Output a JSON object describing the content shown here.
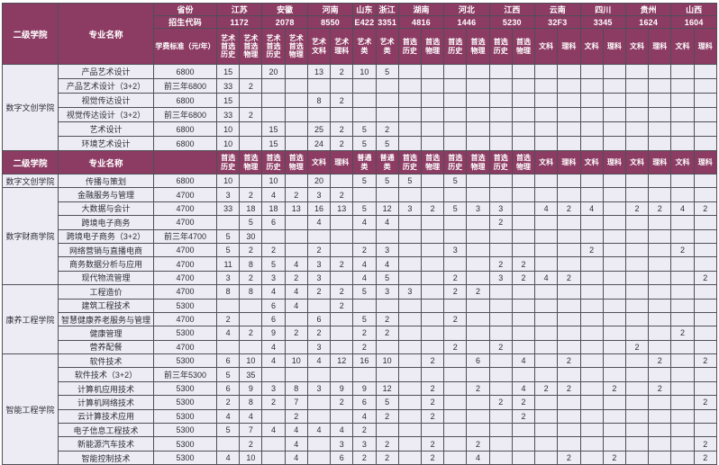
{
  "colors": {
    "header_bg": "#8c3b63",
    "header_text": "#ffffff",
    "cell_bg": "#edecf4",
    "border": "#514e57",
    "cell_text": "#2d2d35"
  },
  "table": {
    "college_label": "二级学院",
    "major_label": "专业名称",
    "province_label": "省份",
    "code_label": "招生代码",
    "fee_label": "学费标准（元/年）",
    "provinces": [
      {
        "name": "江苏",
        "code": "1172",
        "cols": 2
      },
      {
        "name": "安徽",
        "code": "2078",
        "cols": 2
      },
      {
        "name": "河南",
        "code": "8550",
        "cols": 2
      },
      {
        "name": "山东",
        "code": "E422",
        "cols": 1
      },
      {
        "name": "浙江",
        "code": "3351",
        "cols": 1
      },
      {
        "name": "湖南",
        "code": "4816",
        "cols": 2
      },
      {
        "name": "河北",
        "code": "1446",
        "cols": 2
      },
      {
        "name": "江西",
        "code": "5230",
        "cols": 2
      },
      {
        "name": "云南",
        "code": "32F3",
        "cols": 2
      },
      {
        "name": "四川",
        "code": "3345",
        "cols": 2
      },
      {
        "name": "贵州",
        "code": "1624",
        "cols": 2
      },
      {
        "name": "山西",
        "code": "1604",
        "cols": 2
      }
    ],
    "art_subject_cols": [
      "艺术\n首选\n历史",
      "艺术\n首选\n物理",
      "艺术\n首选\n历史",
      "艺术\n首选\n物理",
      "艺术\n文科",
      "艺术\n理科",
      "艺术\n类",
      "艺术\n类",
      "首选\n历史",
      "首选\n物理",
      "首选\n历史",
      "首选\n物理",
      "首选\n历史",
      "首选\n物理",
      "文科",
      "理科",
      "文科",
      "理科",
      "文科",
      "理科",
      "文科",
      "理科"
    ],
    "general_subject_cols": [
      "首选\n历史",
      "首选\n物理",
      "首选\n历史",
      "首选\n物理",
      "文科",
      "理科",
      "普通\n类",
      "普通\n类",
      "首选\n历史",
      "首选\n物理",
      "首选\n历史",
      "首选\n物理",
      "首选\n历史",
      "首选\n物理",
      "文科",
      "理科",
      "文科",
      "理科",
      "文科",
      "理科",
      "文科",
      "理科"
    ],
    "sections_top": [
      {
        "college": "数字文创学院",
        "rows": [
          {
            "major": "产品艺术设计",
            "fee": "6800",
            "values": [
              "15",
              "",
              "20",
              "",
              "13",
              "2",
              "10",
              "5",
              "",
              "",
              "",
              "",
              "",
              "",
              "",
              "",
              "",
              "",
              "",
              "",
              "",
              ""
            ]
          },
          {
            "major": "产品艺术设计（3+2）",
            "fee": "前三年6800",
            "values": [
              "33",
              "2",
              "",
              "",
              "",
              "",
              "",
              "",
              "",
              "",
              "",
              "",
              "",
              "",
              "",
              "",
              "",
              "",
              "",
              "",
              "",
              ""
            ]
          },
          {
            "major": "视觉传达设计",
            "fee": "6800",
            "values": [
              "15",
              "",
              "",
              "",
              "8",
              "2",
              "",
              "",
              "",
              "",
              "",
              "",
              "",
              "",
              "",
              "",
              "",
              "",
              "",
              "",
              "",
              ""
            ]
          },
          {
            "major": "视觉传达设计（3+2）",
            "fee": "前三年6800",
            "values": [
              "33",
              "2",
              "",
              "",
              "",
              "",
              "",
              "",
              "",
              "",
              "",
              "",
              "",
              "",
              "",
              "",
              "",
              "",
              "",
              "",
              "",
              ""
            ]
          },
          {
            "major": "艺术设计",
            "fee": "6800",
            "values": [
              "10",
              "",
              "15",
              "",
              "25",
              "2",
              "5",
              "2",
              "",
              "",
              "",
              "",
              "",
              "",
              "",
              "",
              "",
              "",
              "",
              "",
              "",
              ""
            ]
          },
          {
            "major": "环境艺术设计",
            "fee": "6800",
            "values": [
              "10",
              "",
              "15",
              "",
              "24",
              "2",
              "5",
              "5",
              "",
              "",
              "",
              "",
              "",
              "",
              "",
              "",
              "",
              "",
              "",
              "",
              "",
              ""
            ]
          }
        ]
      }
    ],
    "sections_bottom": [
      {
        "college": "数字文创学院",
        "rows": [
          {
            "major": "传播与策划",
            "fee": "6800",
            "values": [
              "10",
              "",
              "10",
              "",
              "20",
              "",
              "5",
              "5",
              "5",
              "",
              "5",
              "",
              "",
              "",
              "",
              "",
              "",
              "",
              "",
              "",
              "",
              ""
            ]
          }
        ]
      },
      {
        "college": "数字财商学院",
        "rows": [
          {
            "major": "金融服务与管理",
            "fee": "4700",
            "values": [
              "3",
              "2",
              "4",
              "2",
              "3",
              "2",
              "",
              "",
              "",
              "",
              "",
              "",
              "",
              "",
              "",
              "",
              "",
              "",
              "",
              "",
              "",
              ""
            ]
          },
          {
            "major": "大数据与会计",
            "fee": "4700",
            "values": [
              "33",
              "18",
              "18",
              "13",
              "16",
              "13",
              "5",
              "12",
              "3",
              "2",
              "5",
              "3",
              "3",
              "",
              "4",
              "2",
              "4",
              "",
              "2",
              "2",
              "4",
              "2"
            ]
          },
          {
            "major": "跨境电子商务",
            "fee": "4700",
            "values": [
              "",
              "5",
              "6",
              "",
              "4",
              "",
              "4",
              "4",
              "",
              "",
              "",
              "",
              "2",
              "",
              "",
              "",
              "",
              "",
              "",
              "",
              "",
              ""
            ]
          },
          {
            "major": "跨境电子商务（3+2）",
            "fee": "前三年4700",
            "values": [
              "5",
              "30",
              "",
              "",
              "",
              "",
              "",
              "",
              "",
              "",
              "",
              "",
              "",
              "",
              "",
              "",
              "",
              "",
              "",
              "",
              "",
              ""
            ]
          },
          {
            "major": "网络营销与直播电商",
            "fee": "4700",
            "values": [
              "5",
              "2",
              "2",
              "",
              "2",
              "",
              "2",
              "3",
              "",
              "",
              "3",
              "",
              "",
              "",
              "",
              "",
              "2",
              "",
              "",
              "",
              "2",
              ""
            ]
          },
          {
            "major": "商务数据分析与应用",
            "fee": "4700",
            "values": [
              "11",
              "8",
              "5",
              "4",
              "3",
              "2",
              "4",
              "4",
              "",
              "",
              "",
              "",
              "2",
              "2",
              "",
              "",
              "",
              "",
              "",
              "",
              "",
              ""
            ]
          },
          {
            "major": "现代物流管理",
            "fee": "4700",
            "values": [
              "3",
              "2",
              "3",
              "2",
              "3",
              "",
              "4",
              "5",
              "",
              "",
              "2",
              "",
              "3",
              "2",
              "4",
              "2",
              "",
              "",
              "",
              "",
              "",
              "2"
            ]
          }
        ]
      },
      {
        "college": "康养工程学院",
        "rows": [
          {
            "major": "工程造价",
            "fee": "4700",
            "values": [
              "8",
              "8",
              "4",
              "4",
              "2",
              "2",
              "5",
              "3",
              "3",
              "",
              "2",
              "2",
              "",
              "",
              "",
              "",
              "",
              "",
              "",
              "",
              "",
              ""
            ]
          },
          {
            "major": "建筑工程技术",
            "fee": "5300",
            "values": [
              "",
              "",
              "6",
              "4",
              "",
              "2",
              "",
              "",
              "",
              "",
              "",
              "",
              "",
              "",
              "",
              "",
              "",
              "",
              "",
              "",
              "",
              ""
            ]
          },
          {
            "major": "智慧健康养老服务与管理",
            "fee": "4700",
            "values": [
              "2",
              "",
              "6",
              "",
              "6",
              "",
              "5",
              "2",
              "",
              "",
              "2",
              "",
              "",
              "",
              "",
              "",
              "",
              "",
              "",
              "",
              "",
              ""
            ]
          },
          {
            "major": "健康管理",
            "fee": "5300",
            "values": [
              "4",
              "2",
              "9",
              "2",
              "2",
              "",
              "2",
              "2",
              "",
              "",
              "",
              "",
              "",
              "",
              "",
              "",
              "",
              "",
              "",
              "",
              "2",
              ""
            ]
          },
          {
            "major": "营养配餐",
            "fee": "4700",
            "values": [
              "",
              "",
              "4",
              "",
              "3",
              "",
              "2",
              "",
              "",
              "",
              "2",
              "",
              "2",
              "",
              "",
              "",
              "",
              "",
              "2",
              "",
              "",
              ""
            ]
          }
        ]
      },
      {
        "college": "智能工程学院",
        "rows": [
          {
            "major": "软件技术",
            "fee": "5300",
            "values": [
              "6",
              "10",
              "4",
              "10",
              "4",
              "12",
              "16",
              "10",
              "",
              "2",
              "",
              "6",
              "",
              "4",
              "",
              "2",
              "",
              "",
              "",
              "2",
              "",
              "2"
            ]
          },
          {
            "major": "软件技术（3+2）",
            "fee": "前三年5300",
            "values": [
              "5",
              "35",
              "",
              "",
              "",
              "",
              "",
              "",
              "",
              "",
              "",
              "",
              "",
              "",
              "",
              "",
              "",
              "",
              "",
              "",
              "",
              ""
            ]
          },
          {
            "major": "计算机应用技术",
            "fee": "5300",
            "values": [
              "6",
              "9",
              "3",
              "8",
              "3",
              "9",
              "9",
              "12",
              "",
              "2",
              "",
              "2",
              "",
              "4",
              "2",
              "2",
              "",
              "2",
              "",
              "2",
              "",
              ""
            ]
          },
          {
            "major": "计算机网络技术",
            "fee": "5300",
            "values": [
              "2",
              "8",
              "2",
              "7",
              "",
              "2",
              "6",
              "5",
              "",
              "2",
              "",
              "",
              "2",
              "2",
              "",
              "",
              "",
              "",
              "",
              "",
              "",
              "2"
            ]
          },
          {
            "major": "云计算技术应用",
            "fee": "5300",
            "values": [
              "4",
              "4",
              "",
              "2",
              "",
              "",
              "4",
              "2",
              "",
              "2",
              "",
              "",
              "",
              "2",
              "",
              "",
              "",
              "",
              "",
              "",
              "",
              ""
            ]
          },
          {
            "major": "电子信息工程技术",
            "fee": "5300",
            "values": [
              "5",
              "7",
              "4",
              "4",
              "4",
              "4",
              "2",
              "",
              "",
              "",
              "",
              "",
              "",
              "",
              "",
              "",
              "",
              "",
              "",
              "",
              "",
              ""
            ]
          },
          {
            "major": "新能源汽车技术",
            "fee": "5300",
            "values": [
              "",
              "2",
              "",
              "4",
              "",
              "3",
              "3",
              "2",
              "",
              "2",
              "",
              "2",
              "",
              "",
              "",
              "",
              "",
              "",
              "",
              "",
              "",
              "2"
            ]
          },
          {
            "major": "智能控制技术",
            "fee": "5300",
            "values": [
              "4",
              "10",
              "",
              "4",
              "",
              "6",
              "2",
              "2",
              "",
              "2",
              "",
              "4",
              "",
              "",
              "",
              "2",
              "",
              "2",
              "",
              "",
              "",
              "2"
            ]
          }
        ]
      }
    ]
  }
}
